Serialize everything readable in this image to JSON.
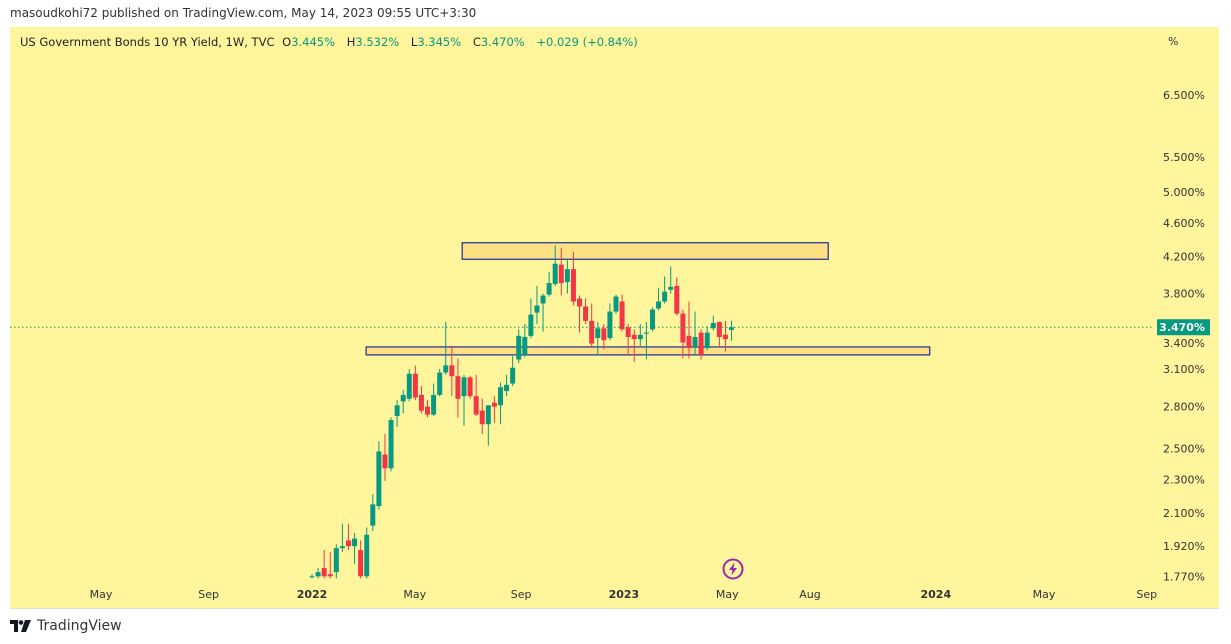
{
  "header": {
    "published": "masoudkohi72 published on TradingView.com, May 14, 2023 09:55 UTC+3:30"
  },
  "legend": {
    "symbol": "US Government Bonds 10 YR Yield, 1W, TVC",
    "o_label": "O",
    "o": "3.445%",
    "h_label": "H",
    "h": "3.532%",
    "l_label": "L",
    "l": "3.345%",
    "c_label": "C",
    "c": "3.470%",
    "change": "+0.029 (+0.84%)"
  },
  "price_unit": "%",
  "footer": {
    "brand": "TradingView"
  },
  "colors": {
    "up": "#089981",
    "down": "#F23645",
    "background": "#FFF59D",
    "box_fill": "#FFE082",
    "box_border": "#1A2A9C"
  },
  "chart_data": {
    "type": "candlestick",
    "title": "US Government Bonds 10 YR Yield, 1W, TVC",
    "y_scale": "log",
    "ylim": [
      1.75,
      7.0
    ],
    "last_price_label": "3.470%",
    "last_price": 3.47,
    "y_ticks": [
      {
        "v": 6.5,
        "label": "6.500%"
      },
      {
        "v": 5.5,
        "label": "5.500%"
      },
      {
        "v": 5.0,
        "label": "5.000%"
      },
      {
        "v": 4.6,
        "label": "4.600%"
      },
      {
        "v": 4.2,
        "label": "4.200%"
      },
      {
        "v": 3.8,
        "label": "3.800%"
      },
      {
        "v": 3.4,
        "label": "3.400%"
      },
      {
        "v": 3.1,
        "label": "3.100%"
      },
      {
        "v": 2.8,
        "label": "2.800%"
      },
      {
        "v": 2.5,
        "label": "2.500%"
      },
      {
        "v": 2.3,
        "label": "2.300%"
      },
      {
        "v": 2.1,
        "label": "2.100%"
      },
      {
        "v": 1.92,
        "label": "1.920%"
      },
      {
        "v": 1.77,
        "label": "1.770%"
      }
    ],
    "x_ticks": [
      {
        "w": -34.7,
        "label": "May",
        "bold": false
      },
      {
        "w": -17,
        "label": "Sep",
        "bold": false
      },
      {
        "w": 0,
        "label": "2022",
        "bold": true
      },
      {
        "w": 16.9,
        "label": "May",
        "bold": false
      },
      {
        "w": 34.4,
        "label": "Sep",
        "bold": false
      },
      {
        "w": 51.3,
        "label": "2023",
        "bold": true
      },
      {
        "w": 68.3,
        "label": "May",
        "bold": false
      },
      {
        "w": 81.9,
        "label": "Aug",
        "bold": false
      },
      {
        "w": 102.6,
        "label": "2024",
        "bold": true
      },
      {
        "w": 120.4,
        "label": "May",
        "bold": false
      },
      {
        "w": 137.3,
        "label": "Sep",
        "bold": false
      }
    ],
    "boxes": [
      {
        "w_start": 24.7,
        "w_end": 84.9,
        "price_top": 4.36,
        "price_bottom": 4.17
      },
      {
        "w_start": 8.9,
        "w_end": 101.6,
        "price_top": 3.29,
        "price_bottom": 3.22
      }
    ],
    "ohlc": [
      [
        1.77,
        1.78,
        1.76,
        1.77
      ],
      [
        1.77,
        1.81,
        1.76,
        1.79
      ],
      [
        1.81,
        1.9,
        1.76,
        1.77
      ],
      [
        1.78,
        1.89,
        1.76,
        1.77
      ],
      [
        1.79,
        1.93,
        1.76,
        1.91
      ],
      [
        1.91,
        2.04,
        1.89,
        1.92
      ],
      [
        1.95,
        2.04,
        1.9,
        1.92
      ],
      [
        1.92,
        1.99,
        1.83,
        1.96
      ],
      [
        1.9,
        1.95,
        1.76,
        1.77
      ],
      [
        1.77,
        2.02,
        1.76,
        1.98
      ],
      [
        2.03,
        2.21,
        2.0,
        2.15
      ],
      [
        2.14,
        2.55,
        2.12,
        2.48
      ],
      [
        2.46,
        2.6,
        2.29,
        2.37
      ],
      [
        2.37,
        2.72,
        2.35,
        2.7
      ],
      [
        2.73,
        2.85,
        2.65,
        2.81
      ],
      [
        2.84,
        2.93,
        2.75,
        2.89
      ],
      [
        2.86,
        3.1,
        2.84,
        3.06
      ],
      [
        3.06,
        3.13,
        2.85,
        2.87
      ],
      [
        2.89,
        2.96,
        2.75,
        2.77
      ],
      [
        2.8,
        2.85,
        2.72,
        2.74
      ],
      [
        2.74,
        2.98,
        2.73,
        2.89
      ],
      [
        2.89,
        3.1,
        2.88,
        3.07
      ],
      [
        3.07,
        3.52,
        3.05,
        3.13
      ],
      [
        3.13,
        3.3,
        2.88,
        3.04
      ],
      [
        3.04,
        3.19,
        2.72,
        2.86
      ],
      [
        2.88,
        3.05,
        2.66,
        3.03
      ],
      [
        3.03,
        3.04,
        2.86,
        2.88
      ],
      [
        2.88,
        3.05,
        2.73,
        2.74
      ],
      [
        2.77,
        2.86,
        2.6,
        2.67
      ],
      [
        2.67,
        2.81,
        2.52,
        2.81
      ],
      [
        2.83,
        2.88,
        2.68,
        2.8
      ],
      [
        2.81,
        2.99,
        2.67,
        2.95
      ],
      [
        2.92,
        3.05,
        2.88,
        2.97
      ],
      [
        2.98,
        3.21,
        2.96,
        3.11
      ],
      [
        3.18,
        3.45,
        3.15,
        3.39
      ],
      [
        3.22,
        3.5,
        3.2,
        3.38
      ],
      [
        3.39,
        3.75,
        3.37,
        3.59
      ],
      [
        3.61,
        3.88,
        3.5,
        3.68
      ],
      [
        3.7,
        3.8,
        3.43,
        3.78
      ],
      [
        3.79,
        4.03,
        3.77,
        3.91
      ],
      [
        3.9,
        4.33,
        3.88,
        4.12
      ],
      [
        4.11,
        4.3,
        3.78,
        3.91
      ],
      [
        3.92,
        4.16,
        3.8,
        4.06
      ],
      [
        4.06,
        4.25,
        3.68,
        3.72
      ],
      [
        3.75,
        3.78,
        3.42,
        3.67
      ],
      [
        3.67,
        3.75,
        3.5,
        3.53
      ],
      [
        3.53,
        3.7,
        3.28,
        3.32
      ],
      [
        3.37,
        3.52,
        3.22,
        3.46
      ],
      [
        3.46,
        3.5,
        3.27,
        3.35
      ],
      [
        3.37,
        3.7,
        3.35,
        3.62
      ],
      [
        3.62,
        3.79,
        3.6,
        3.77
      ],
      [
        3.72,
        3.79,
        3.43,
        3.45
      ],
      [
        3.47,
        3.5,
        3.22,
        3.38
      ],
      [
        3.4,
        3.45,
        3.16,
        3.36
      ],
      [
        3.36,
        3.5,
        3.3,
        3.4
      ],
      [
        3.41,
        3.52,
        3.18,
        3.42
      ],
      [
        3.45,
        3.66,
        3.43,
        3.64
      ],
      [
        3.65,
        3.86,
        3.63,
        3.72
      ],
      [
        3.72,
        3.98,
        3.7,
        3.82
      ],
      [
        3.84,
        4.09,
        3.8,
        3.87
      ],
      [
        3.88,
        3.97,
        3.58,
        3.6
      ],
      [
        3.6,
        3.64,
        3.19,
        3.33
      ],
      [
        3.39,
        3.72,
        3.19,
        3.28
      ],
      [
        3.29,
        3.62,
        3.22,
        3.38
      ],
      [
        3.42,
        3.45,
        3.18,
        3.22
      ],
      [
        3.28,
        3.48,
        3.26,
        3.42
      ],
      [
        3.46,
        3.58,
        3.44,
        3.51
      ],
      [
        3.52,
        3.52,
        3.3,
        3.38
      ],
      [
        3.4,
        3.53,
        3.25,
        3.36
      ],
      [
        3.445,
        3.532,
        3.345,
        3.47
      ]
    ]
  }
}
